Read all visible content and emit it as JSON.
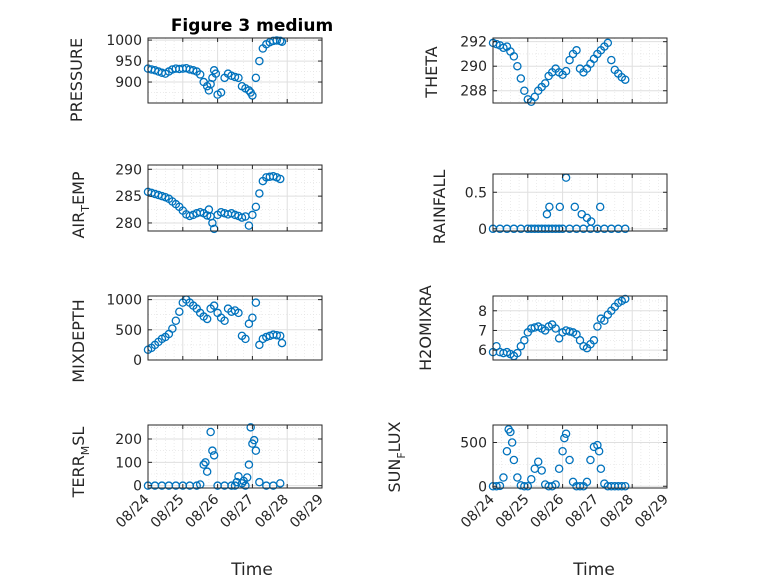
{
  "figure": {
    "title": "Figure 3 medium",
    "xlabel": "Time",
    "x_ticks": [
      "08/24",
      "08/25",
      "08/26",
      "08/27",
      "08/28",
      "08/29"
    ],
    "colors": {
      "marker": "#0072bd",
      "axes": "#262626",
      "grid": "#dfdfdf",
      "background": "#ffffff"
    }
  },
  "chart_data": [
    {
      "type": "scatter",
      "ylabel": "PRESSURE",
      "ylim": [
        850,
        1005
      ],
      "yticks": [
        900,
        950,
        1000
      ],
      "grid": true,
      "x": [
        24.0,
        24.1,
        24.2,
        24.3,
        24.4,
        24.5,
        24.6,
        24.7,
        24.8,
        24.9,
        25.0,
        25.1,
        25.2,
        25.3,
        25.4,
        25.5,
        25.6,
        25.7,
        25.75,
        25.8,
        25.85,
        25.9,
        25.95,
        26.0,
        26.1,
        26.2,
        26.3,
        26.4,
        26.5,
        26.6,
        26.7,
        26.8,
        26.9,
        26.95,
        27.0,
        27.1,
        27.2,
        27.3,
        27.4,
        27.5,
        27.6,
        27.7,
        27.8,
        27.85
      ],
      "y": [
        932,
        930,
        928,
        925,
        922,
        920,
        925,
        930,
        932,
        931,
        932,
        933,
        930,
        928,
        925,
        918,
        900,
        890,
        880,
        895,
        910,
        928,
        920,
        870,
        875,
        910,
        920,
        915,
        912,
        910,
        890,
        885,
        880,
        875,
        868,
        910,
        950,
        980,
        990,
        995,
        998,
        999,
        998,
        996
      ]
    },
    {
      "type": "scatter",
      "ylabel": "THETA",
      "ylim": [
        287,
        292.3
      ],
      "yticks": [
        288,
        290,
        292
      ],
      "grid": true,
      "x": [
        24.0,
        24.1,
        24.2,
        24.3,
        24.4,
        24.5,
        24.6,
        24.7,
        24.8,
        24.9,
        25.0,
        25.1,
        25.2,
        25.3,
        25.4,
        25.5,
        25.6,
        25.7,
        25.8,
        25.9,
        26.0,
        26.1,
        26.2,
        26.3,
        26.4,
        26.5,
        26.6,
        26.7,
        26.8,
        26.9,
        27.0,
        27.1,
        27.2,
        27.3,
        27.4,
        27.5,
        27.6,
        27.7,
        27.8
      ],
      "y": [
        291.9,
        291.8,
        291.7,
        291.5,
        291.6,
        291.2,
        290.8,
        290.0,
        289.0,
        288.0,
        287.3,
        287.1,
        287.5,
        288.0,
        288.3,
        288.6,
        289.2,
        289.5,
        289.8,
        289.5,
        289.3,
        289.6,
        290.5,
        291.0,
        291.3,
        289.8,
        289.5,
        289.8,
        290.2,
        290.6,
        291.0,
        291.3,
        291.6,
        291.9,
        290.5,
        289.7,
        289.4,
        289.1,
        288.9
      ]
    },
    {
      "type": "scatter",
      "ylabel": "AIR_TEMP",
      "ylim": [
        278.5,
        290.8
      ],
      "yticks": [
        280,
        285,
        290
      ],
      "grid": true,
      "x": [
        24.0,
        24.1,
        24.2,
        24.3,
        24.4,
        24.5,
        24.6,
        24.7,
        24.8,
        24.9,
        25.0,
        25.1,
        25.2,
        25.3,
        25.4,
        25.5,
        25.6,
        25.7,
        25.75,
        25.8,
        25.85,
        25.9,
        26.0,
        26.1,
        26.2,
        26.3,
        26.4,
        26.5,
        26.6,
        26.7,
        26.8,
        26.9,
        27.0,
        27.1,
        27.2,
        27.3,
        27.4,
        27.5,
        27.6,
        27.7,
        27.8
      ],
      "y": [
        285.8,
        285.6,
        285.4,
        285.2,
        285.0,
        284.8,
        284.5,
        284.0,
        283.5,
        283.0,
        282.3,
        281.6,
        281.3,
        281.5,
        281.8,
        282.0,
        281.8,
        281.4,
        282.5,
        281.2,
        280.0,
        278.9,
        281.5,
        282.0,
        281.8,
        281.6,
        281.8,
        281.5,
        281.3,
        281.0,
        281.2,
        279.5,
        281.5,
        283.0,
        285.5,
        287.8,
        288.5,
        288.6,
        288.7,
        288.5,
        288.2
      ]
    },
    {
      "type": "scatter",
      "ylabel": "RAINFALL",
      "ylim": [
        -0.03,
        0.75
      ],
      "yticks": [
        0,
        0.5
      ],
      "grid": true,
      "x": [
        24.0,
        24.2,
        24.4,
        24.6,
        24.8,
        25.0,
        25.1,
        25.2,
        25.3,
        25.4,
        25.5,
        25.6,
        25.7,
        25.8,
        25.9,
        26.0,
        26.2,
        26.4,
        26.6,
        26.8,
        27.0,
        27.2,
        27.4,
        27.6,
        27.8,
        25.55,
        25.62,
        25.92,
        26.1,
        26.35,
        26.55,
        26.7,
        26.82,
        27.08
      ],
      "y": [
        0,
        0,
        0,
        0,
        0,
        0,
        0,
        0,
        0,
        0,
        0,
        0,
        0,
        0,
        0,
        0,
        0,
        0,
        0,
        0,
        0,
        0,
        0,
        0,
        0,
        0.2,
        0.3,
        0.3,
        0.7,
        0.3,
        0.2,
        0.15,
        0.1,
        0.3
      ]
    },
    {
      "type": "scatter",
      "ylabel": "MIXDEPTH",
      "ylim": [
        0,
        1060
      ],
      "yticks": [
        0,
        500,
        1000
      ],
      "grid": true,
      "x": [
        24.0,
        24.1,
        24.2,
        24.3,
        24.4,
        24.5,
        24.6,
        24.7,
        24.8,
        24.9,
        25.0,
        25.1,
        25.2,
        25.3,
        25.4,
        25.5,
        25.6,
        25.7,
        25.8,
        25.9,
        26.0,
        26.1,
        26.2,
        26.3,
        26.4,
        26.5,
        26.6,
        26.7,
        26.8,
        26.9,
        27.0,
        27.1,
        27.2,
        27.3,
        27.4,
        27.5,
        27.6,
        27.7,
        27.8,
        27.85
      ],
      "y": [
        170,
        200,
        250,
        300,
        350,
        380,
        430,
        520,
        650,
        800,
        950,
        1000,
        950,
        900,
        850,
        780,
        720,
        680,
        850,
        900,
        780,
        700,
        650,
        850,
        800,
        820,
        780,
        400,
        350,
        600,
        700,
        950,
        250,
        350,
        380,
        400,
        420,
        410,
        400,
        280
      ]
    },
    {
      "type": "scatter",
      "ylabel": "H2OMIXRA",
      "ylim": [
        5.5,
        8.75
      ],
      "yticks": [
        6,
        7,
        8
      ],
      "grid": true,
      "x": [
        24.0,
        24.1,
        24.2,
        24.3,
        24.4,
        24.5,
        24.6,
        24.7,
        24.8,
        24.9,
        25.0,
        25.1,
        25.2,
        25.3,
        25.4,
        25.5,
        25.6,
        25.7,
        25.8,
        25.9,
        26.0,
        26.1,
        26.2,
        26.3,
        26.4,
        26.5,
        26.6,
        26.7,
        26.8,
        26.9,
        27.0,
        27.1,
        27.2,
        27.3,
        27.4,
        27.5,
        27.6,
        27.7,
        27.8
      ],
      "y": [
        5.9,
        6.2,
        5.9,
        5.85,
        5.9,
        5.8,
        5.7,
        5.85,
        6.2,
        6.5,
        6.9,
        7.1,
        7.15,
        7.2,
        7.1,
        7.0,
        7.2,
        7.3,
        7.1,
        6.6,
        6.9,
        7.0,
        6.95,
        6.9,
        6.8,
        6.5,
        6.2,
        6.1,
        6.3,
        6.5,
        7.2,
        7.6,
        7.5,
        7.8,
        8.0,
        8.2,
        8.4,
        8.5,
        8.6
      ]
    },
    {
      "type": "scatter",
      "ylabel": "TERR_MSL",
      "ylim": [
        -10,
        260
      ],
      "yticks": [
        0,
        100,
        200
      ],
      "grid": true,
      "x": [
        24.0,
        24.2,
        24.4,
        24.6,
        24.8,
        25.0,
        25.2,
        25.4,
        25.5,
        25.6,
        25.65,
        25.7,
        25.8,
        25.85,
        25.9,
        26.0,
        26.2,
        26.4,
        26.5,
        26.55,
        26.6,
        26.7,
        26.75,
        26.8,
        26.85,
        26.9,
        26.95,
        27.0,
        27.05,
        27.1,
        27.2,
        27.4,
        27.6,
        27.8
      ],
      "y": [
        0,
        0,
        0,
        0,
        0,
        0,
        0,
        0,
        5,
        90,
        100,
        60,
        230,
        150,
        130,
        0,
        0,
        0,
        0,
        15,
        40,
        10,
        20,
        0,
        35,
        90,
        250,
        180,
        195,
        150,
        15,
        0,
        0,
        10
      ]
    },
    {
      "type": "scatter",
      "ylabel": "SUN_FLUX",
      "ylim": [
        -20,
        700
      ],
      "yticks": [
        0,
        500
      ],
      "grid": true,
      "x": [
        24.0,
        24.1,
        24.2,
        24.3,
        24.4,
        24.45,
        24.5,
        24.55,
        24.6,
        24.7,
        24.8,
        24.9,
        25.0,
        25.1,
        25.2,
        25.3,
        25.4,
        25.5,
        25.6,
        25.7,
        25.8,
        25.9,
        26.0,
        26.05,
        26.1,
        26.2,
        26.3,
        26.4,
        26.5,
        26.6,
        26.7,
        26.8,
        26.9,
        27.0,
        27.05,
        27.1,
        27.2,
        27.3,
        27.4,
        27.5,
        27.6,
        27.7,
        27.8
      ],
      "y": [
        0,
        0,
        5,
        100,
        400,
        650,
        620,
        500,
        300,
        100,
        10,
        0,
        0,
        80,
        200,
        280,
        180,
        20,
        0,
        0,
        20,
        200,
        400,
        550,
        600,
        300,
        50,
        0,
        0,
        0,
        50,
        300,
        450,
        470,
        400,
        200,
        30,
        0,
        0,
        0,
        0,
        0,
        0
      ]
    }
  ]
}
